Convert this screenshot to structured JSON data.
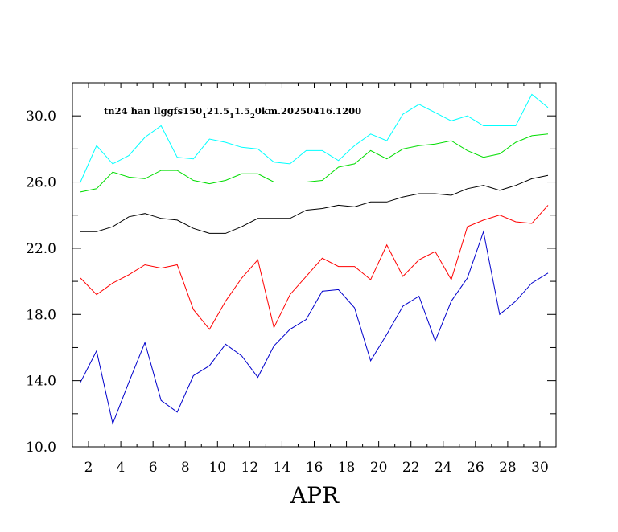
{
  "chart_data": {
    "type": "line",
    "title_parts": [
      {
        "text": "tn24 han llggfs150",
        "sub": false
      },
      {
        "text": "1",
        "sub": true
      },
      {
        "text": "21.5",
        "sub": false
      },
      {
        "text": "1",
        "sub": true
      },
      {
        "text": "1.5",
        "sub": false
      },
      {
        "text": "2",
        "sub": true
      },
      {
        "text": "0km.20250416.1200",
        "sub": false
      }
    ],
    "xlabel": "APR",
    "xlim": [
      1,
      31
    ],
    "ylim": [
      10,
      32
    ],
    "x_ticks": [
      2,
      4,
      6,
      8,
      10,
      12,
      14,
      16,
      18,
      20,
      22,
      24,
      26,
      28,
      30
    ],
    "y_ticks": [
      10,
      14,
      18,
      22,
      26,
      30
    ],
    "y_tick_labels": [
      "10.0",
      "14.0",
      "18.0",
      "22.0",
      "26.0",
      "30.0"
    ],
    "x": [
      1.5,
      2.5,
      3.5,
      4.5,
      5.5,
      6.5,
      7.5,
      8.5,
      9.5,
      10.5,
      11.5,
      12.5,
      13.5,
      14.5,
      15.5,
      16.5,
      17.5,
      18.5,
      19.5,
      20.5,
      21.5,
      22.5,
      23.5,
      24.5,
      25.5,
      26.5,
      27.5,
      28.5,
      29.5,
      30.5
    ],
    "series": [
      {
        "color": "#00ffff",
        "values": [
          26.0,
          28.2,
          27.1,
          27.6,
          28.7,
          29.4,
          27.5,
          27.4,
          28.6,
          28.4,
          28.1,
          28.0,
          27.2,
          27.1,
          27.9,
          27.9,
          27.3,
          28.2,
          28.9,
          28.5,
          30.1,
          30.7,
          30.2,
          29.7,
          30.0,
          29.4,
          29.4,
          29.4,
          31.3,
          30.5
        ]
      },
      {
        "color": "#00dd00",
        "values": [
          25.4,
          25.6,
          26.6,
          26.3,
          26.2,
          26.7,
          26.7,
          26.1,
          25.9,
          26.1,
          26.5,
          26.5,
          26.0,
          26.0,
          26.0,
          26.1,
          26.9,
          27.1,
          27.9,
          27.4,
          28.0,
          28.2,
          28.3,
          28.5,
          27.9,
          27.5,
          27.7,
          28.4,
          28.8,
          28.9
        ]
      },
      {
        "color": "#000000",
        "values": [
          23.0,
          23.0,
          23.3,
          23.9,
          24.1,
          23.8,
          23.7,
          23.2,
          22.9,
          22.9,
          23.3,
          23.8,
          23.8,
          23.8,
          24.3,
          24.4,
          24.6,
          24.5,
          24.8,
          24.8,
          25.1,
          25.3,
          25.3,
          25.2,
          25.6,
          25.8,
          25.5,
          25.8,
          26.2,
          26.4
        ]
      },
      {
        "color": "#ff0000",
        "values": [
          20.2,
          19.2,
          19.9,
          20.4,
          21.0,
          20.8,
          21.0,
          18.3,
          17.1,
          18.8,
          20.2,
          21.3,
          17.2,
          19.2,
          20.3,
          21.4,
          20.9,
          20.9,
          20.1,
          22.2,
          20.3,
          21.3,
          21.8,
          20.1,
          23.3,
          23.7,
          24.0,
          23.6,
          23.5,
          24.6
        ]
      },
      {
        "color": "#0000cc",
        "values": [
          13.9,
          15.8,
          11.4,
          13.9,
          16.3,
          12.8,
          12.1,
          14.3,
          14.9,
          16.2,
          15.5,
          14.2,
          16.1,
          17.1,
          17.7,
          19.4,
          19.5,
          18.4,
          15.2,
          16.8,
          18.5,
          19.1,
          16.4,
          18.8,
          20.2,
          23.0,
          18.0,
          18.8,
          19.9,
          20.5
        ]
      }
    ]
  }
}
